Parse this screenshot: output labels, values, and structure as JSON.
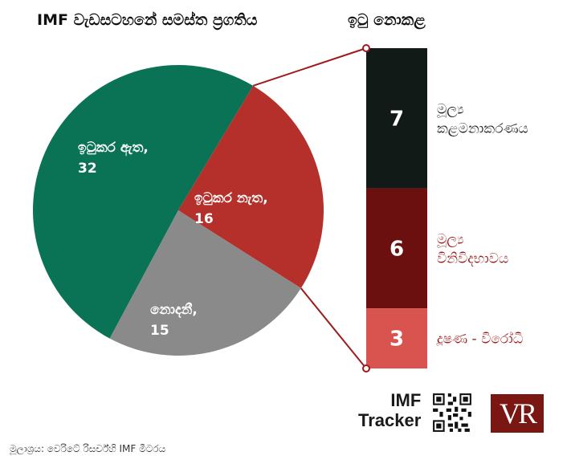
{
  "header": {
    "title_left": "IMF වැඩසටහනේ සමස්ත ප්‍රගතිය",
    "title_right": "ඉටු නොකළ"
  },
  "colors": {
    "done": "#0b7355",
    "not_done": "#b5302b",
    "unknown": "#8a8a8a",
    "bar_top": "#111a17",
    "bar_mid": "#6b0f0f",
    "bar_bottom": "#d9544f",
    "connector": "#9b1c1c",
    "label_dark": "#222222",
    "label_red": "#9b1c1c"
  },
  "chart_data": [
    {
      "type": "pie",
      "slices": [
        {
          "label": "ඉටුකර ඇත,",
          "value": 32,
          "display": "32"
        },
        {
          "label": "ඉටුකර නැත,",
          "value": 16,
          "display": "16"
        },
        {
          "label": "නොදනී,",
          "value": 15,
          "display": "15"
        }
      ]
    },
    {
      "type": "bar",
      "stacked": true,
      "segments": [
        {
          "label_lines": [
            "මූල්‍ය",
            "කළමනාකරණය"
          ],
          "value": 7,
          "display": "7"
        },
        {
          "label_lines": [
            "මූල්‍ය",
            "විනිවිදභාවය"
          ],
          "value": 6,
          "display": "6"
        },
        {
          "label_lines": [
            "දූෂණ - විරෝධී"
          ],
          "value": 3,
          "display": "3"
        }
      ]
    }
  ],
  "branding": {
    "tracker_line1": "IMF",
    "tracker_line2": "Tracker",
    "logo_text": "VR",
    "qr_icon": "qr-code-icon"
  },
  "footer": {
    "source": "මූලාශ්‍රය: වෙරිටේ රිසර්ච්හි IMF මීටරය"
  }
}
